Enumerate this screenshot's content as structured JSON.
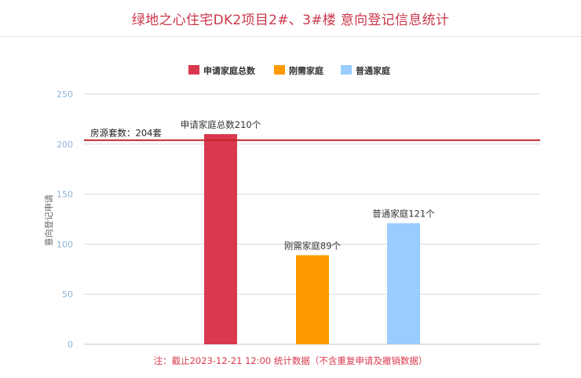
{
  "page": {
    "title": "绿地之心住宅DK2项目2#、3#楼 意向登记信息统计",
    "footnote": "注：截止2023-12-21 12:00 统计数据（不含重复申请及撤销数据）"
  },
  "chart_data": {
    "type": "bar",
    "title": "",
    "xlabel": "",
    "ylabel": "意向登记申请",
    "ylim": [
      0,
      250
    ],
    "yticks": [
      0,
      50,
      100,
      150,
      200,
      250
    ],
    "grid": true,
    "legend_position": "top-center",
    "series": [
      {
        "name": "申请家庭总数",
        "value": 210,
        "label": "申请家庭总数210个",
        "color": "#d9384f"
      },
      {
        "name": "刚需家庭",
        "value": 89,
        "label": "刚需家庭89个",
        "color": "#ff9900"
      },
      {
        "name": "普通家庭",
        "value": 121,
        "label": "普通家庭121个",
        "color": "#99ccff"
      }
    ],
    "reference_line": {
      "value": 204,
      "label": "房源套数：204套",
      "color": "#c0272d"
    }
  }
}
